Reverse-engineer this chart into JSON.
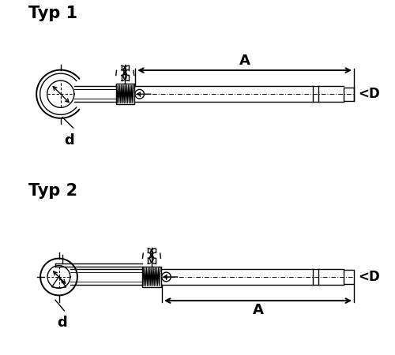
{
  "title1": "Typ 1",
  "title2": "Typ 2",
  "label_A": "A",
  "label_d": "d",
  "label_D": "<D",
  "bg_color": "#ffffff",
  "line_color": "#000000",
  "title_fontsize": 15,
  "label_fontsize": 12,
  "fig_width": 5.0,
  "fig_height": 4.5,
  "dpi": 100
}
